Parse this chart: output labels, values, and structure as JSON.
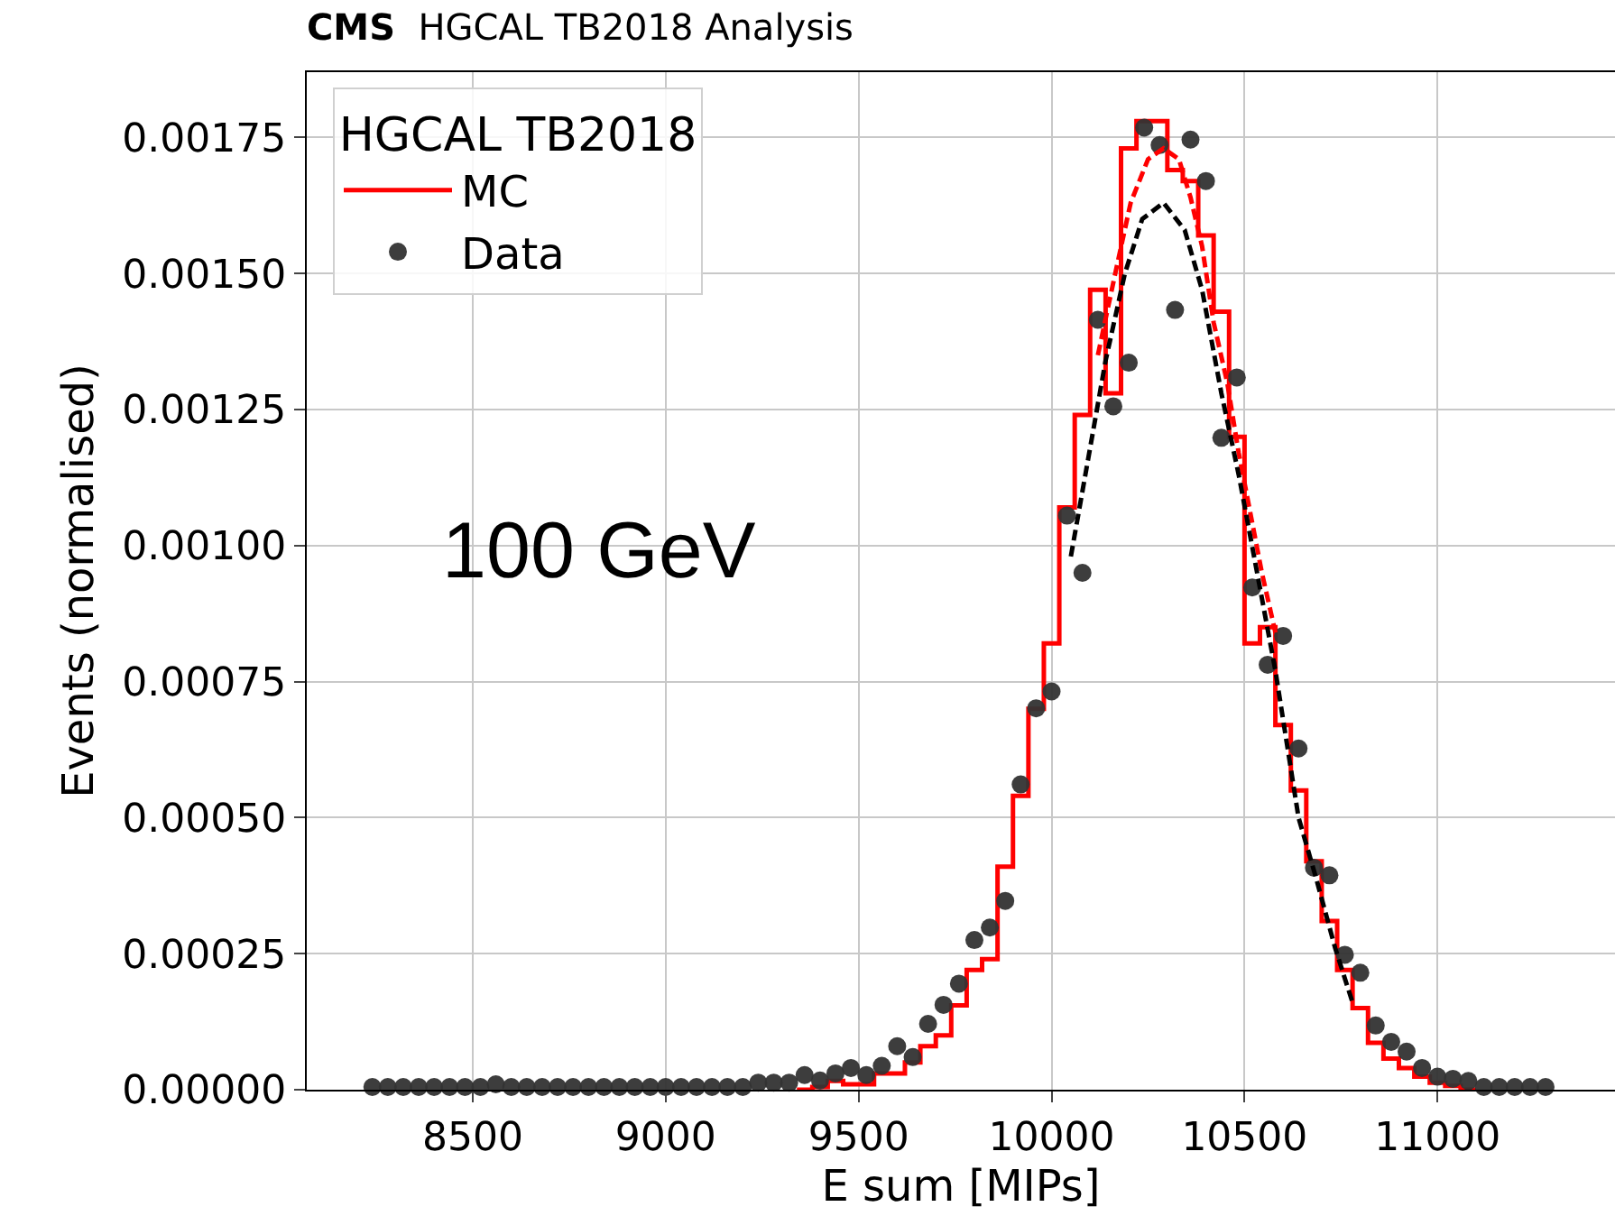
{
  "chart_data": {
    "type": "step",
    "title": "CMS",
    "subtitle": "HGCAL TB2018 Analysis",
    "xlabel": "E sum [MIPs]",
    "ylabel": "Events (normalised)",
    "legend_title": "HGCAL TB2018",
    "annotations": [
      "100 GeV"
    ],
    "series": [
      {
        "name": "MC",
        "color": "#ff0000",
        "x": [
          9340,
          9380,
          9420,
          9460,
          9500,
          9540,
          9580,
          9620,
          9660,
          9700,
          9740,
          9780,
          9820,
          9860,
          9900,
          9940,
          9980,
          10020,
          10060,
          10100,
          10140,
          10180,
          10220,
          10260,
          10300,
          10340,
          10380,
          10420,
          10460,
          10500,
          10540,
          10580,
          10620,
          10660,
          10700,
          10740,
          10780,
          10820,
          10860,
          10900,
          10940,
          10980,
          11020,
          11060,
          11100
        ],
        "values": [
          0,
          5e-06,
          1.6e-05,
          1e-05,
          1e-05,
          3e-05,
          3e-05,
          5e-05,
          8e-05,
          0.0001,
          0.000155,
          0.00022,
          0.00024,
          0.00041,
          0.00054,
          0.0007,
          0.00082,
          0.00107,
          0.00124,
          0.00147,
          0.00128,
          0.00173,
          0.00178,
          0.00178,
          0.00169,
          0.00167,
          0.00157,
          0.00143,
          0.0012,
          0.00082,
          0.00085,
          0.00067,
          0.00055,
          0.00042,
          0.00031,
          0.00022,
          0.00015,
          8.6e-05,
          5.7e-05,
          4e-05,
          2.4e-05,
          1.3e-05,
          7e-06,
          0,
          0
        ]
      },
      {
        "name": "Data",
        "type": "scatter",
        "marker": "circle",
        "color": "#333333",
        "x": [
          8240,
          8280,
          8320,
          8360,
          8400,
          8440,
          8480,
          8520,
          8560,
          8600,
          8640,
          8680,
          8720,
          8760,
          8800,
          8840,
          8880,
          8920,
          8960,
          9000,
          9040,
          9080,
          9120,
          9160,
          9200,
          9240,
          9280,
          9320,
          9360,
          9400,
          9440,
          9480,
          9520,
          9560,
          9600,
          9640,
          9680,
          9720,
          9760,
          9800,
          9840,
          9880,
          9920,
          9960,
          10000,
          10040,
          10080,
          10120,
          10160,
          10200,
          10240,
          10280,
          10320,
          10360,
          10400,
          10440,
          10480,
          10520,
          10560,
          10600,
          10640,
          10680,
          10720,
          10760,
          10800,
          10840,
          10880,
          10920,
          10960,
          11000,
          11040,
          11080,
          11120,
          11160,
          11200,
          11240,
          11280
        ],
        "values": [
          5e-06,
          5e-06,
          5e-06,
          5e-06,
          5e-06,
          5e-06,
          5e-06,
          5e-06,
          1e-05,
          5e-06,
          5e-06,
          5e-06,
          5e-06,
          5e-06,
          5e-06,
          5e-06,
          5e-06,
          5e-06,
          5e-06,
          5e-06,
          5e-06,
          5e-06,
          5e-06,
          5e-06,
          5e-06,
          1.3e-05,
          1.3e-05,
          1.3e-05,
          2.7e-05,
          1.7e-05,
          3e-05,
          4e-05,
          2.7e-05,
          4.4e-05,
          8e-05,
          6e-05,
          0.000121,
          0.000156,
          0.000195,
          0.000275,
          0.000298,
          0.000347,
          0.000561,
          0.000701,
          0.000732,
          0.001055,
          0.00095,
          0.001415,
          0.001256,
          0.001336,
          0.001768,
          0.001736,
          0.001433,
          0.001746,
          0.00167,
          0.001198,
          0.001309,
          0.000923,
          0.000781,
          0.000834,
          0.000627,
          0.000408,
          0.000394,
          0.000248,
          0.000215,
          0.000118,
          8.8e-05,
          7e-05,
          4e-05,
          2.4e-05,
          2e-05,
          1.6e-05,
          5e-06,
          5e-06,
          5e-06,
          5e-06,
          5e-06
        ]
      },
      {
        "type": "line",
        "color": "#ff0000",
        "line_style": "dashed",
        "x": [
          10120,
          10165,
          10205,
          10250,
          10290,
          10330,
          10360,
          10390,
          10420,
          10455,
          10485,
          10515,
          10545,
          10580
        ],
        "values": [
          0.00135,
          0.0015,
          0.00163,
          0.00171,
          0.00173,
          0.00171,
          0.00164,
          0.00155,
          0.00141,
          0.0013,
          0.00117,
          0.00106,
          0.00095,
          0.00084
        ]
      },
      {
        "type": "line",
        "color": "#000000",
        "line_style": "dashed",
        "x": [
          10050,
          10095,
          10140,
          10190,
          10235,
          10290,
          10345,
          10390,
          10440,
          10485,
          10530,
          10580,
          10640,
          10685,
          10735,
          10780
        ],
        "values": [
          0.00098,
          0.00116,
          0.00134,
          0.0015,
          0.0016,
          0.00163,
          0.00158,
          0.00147,
          0.00128,
          0.00113,
          0.00096,
          0.00077,
          0.0005,
          0.00039,
          0.00026,
          0.00016
        ]
      }
    ],
    "xlim": [
      8070,
      11460
    ],
    "xticks": [
      8500,
      9000,
      9500,
      10000,
      10500,
      11000
    ],
    "ylim": [
      0,
      0.00187
    ],
    "yticks": [
      {
        "value": 0,
        "label": "0.00000"
      },
      {
        "value": 0.00025,
        "label": "0.00025"
      },
      {
        "value": 0.0005,
        "label": "0.00050"
      },
      {
        "value": 0.00075,
        "label": "0.00075"
      },
      {
        "value": 0.001,
        "label": "0.00100"
      },
      {
        "value": 0.00125,
        "label": "0.00125"
      },
      {
        "value": 0.0015,
        "label": "0.00150"
      },
      {
        "value": 0.00175,
        "label": "0.00175"
      }
    ],
    "grid": true,
    "legend": "top left"
  }
}
